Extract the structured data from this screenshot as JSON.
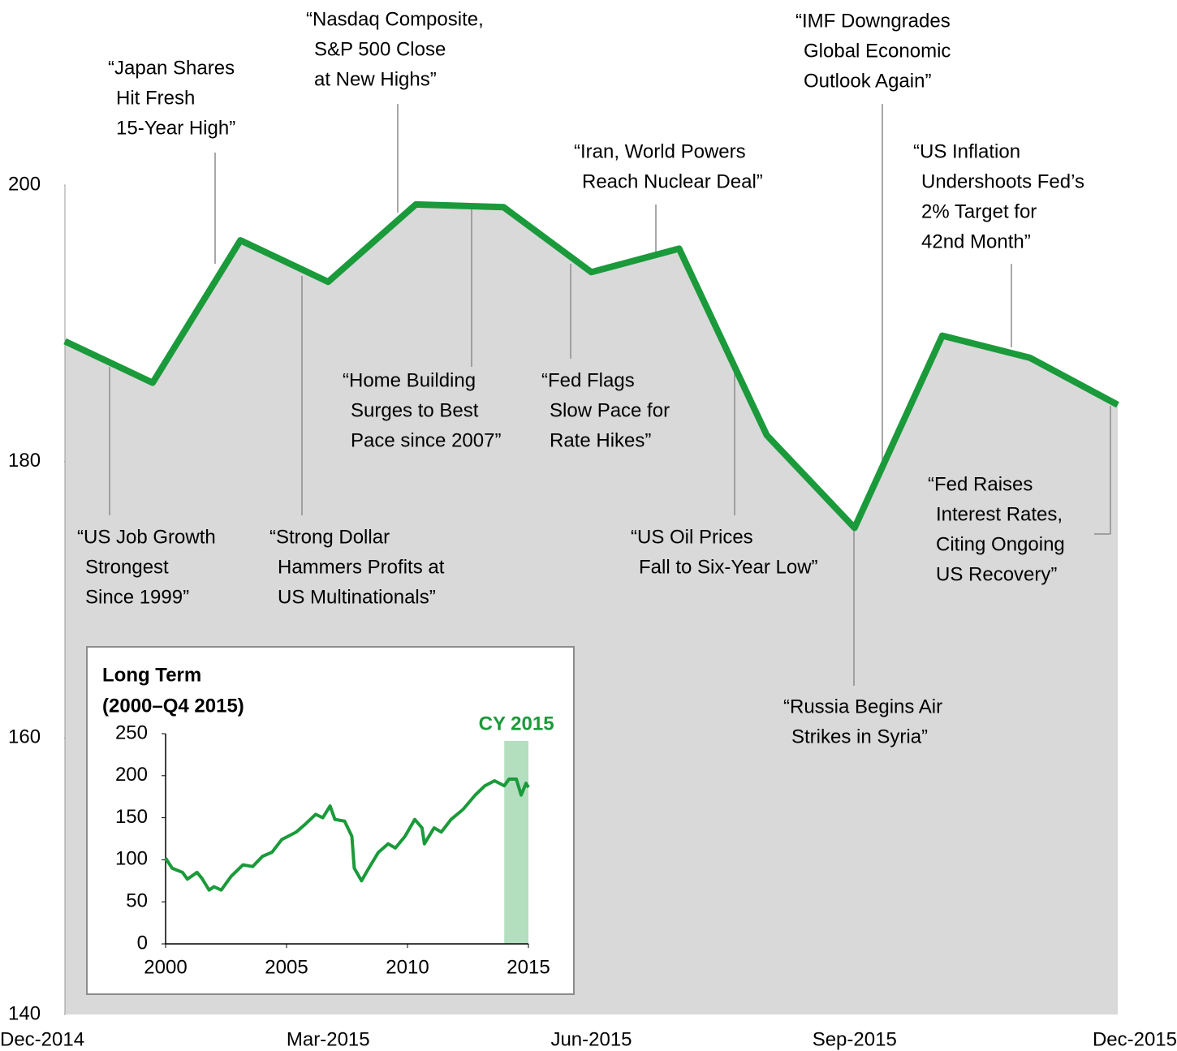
{
  "chart_data": [
    {
      "type": "area-line",
      "categories": [
        "Dec-2014",
        null,
        null,
        "Mar-2015",
        null,
        null,
        "Jun-2015",
        null,
        null,
        "Sep-2015",
        null,
        null,
        "Dec-2015"
      ],
      "series": [
        {
          "color": "#1a9a3a",
          "values": [
            188.7,
            185.7,
            196.0,
            193.0,
            198.6,
            198.4,
            193.7,
            195.4,
            181.9,
            175.2,
            189.1,
            187.5,
            184.1
          ]
        }
      ],
      "area_color": "#d9d9d9",
      "ylim": [
        140,
        200
      ],
      "yticks": [
        140,
        160,
        180,
        200
      ],
      "annotations": [
        [
          "“Japan Shares",
          "Hit Fresh",
          "15-Year High”"
        ],
        [
          "“Nasdaq Composite,",
          "S&P 500 Close",
          "at New Highs”"
        ],
        [
          "“Iran, World Powers",
          "Reach Nuclear Deal”"
        ],
        [
          "“IMF Downgrades",
          "Global Economic",
          "Outlook Again”"
        ],
        [
          "“US Inflation",
          "Undershoots Fed’s",
          "2% Target for",
          "42nd Month”"
        ],
        [
          "“US Job Growth",
          "Strongest",
          "Since 1999”"
        ],
        [
          "“Strong Dollar",
          "Hammers Profits at",
          "US Multinationals”"
        ],
        [
          "“Home Building",
          "Surges to Best",
          "Pace since 2007”"
        ],
        [
          "“Fed Flags",
          "Slow Pace for",
          "Rate Hikes”"
        ],
        [
          "“US Oil Prices",
          "Fall to Six-Year Low”"
        ],
        [
          "“Russia Begins Air",
          "Strikes in Syria”"
        ],
        [
          "“Fed Raises",
          "Interest Rates,",
          "Citing Ongoing",
          "US Recovery”"
        ]
      ]
    },
    {
      "type": "line",
      "title": "Long Term",
      "subtitle": "(2000–Q4 2015)",
      "x": [
        2000,
        2000.27,
        2000.7,
        2000.9,
        2001.3,
        2001.5,
        2001.8,
        2002.0,
        2002.3,
        2002.7,
        2003.2,
        2003.6,
        2004.0,
        2004.4,
        2004.8,
        2005.4,
        2005.8,
        2006.2,
        2006.5,
        2006.8,
        2007.0,
        2007.4,
        2007.7,
        2007.8,
        2008.1,
        2008.4,
        2008.8,
        2009.2,
        2009.5,
        2009.9,
        2010.3,
        2010.6,
        2010.7,
        2011.1,
        2011.4,
        2011.8,
        2012.3,
        2012.8,
        2013.2,
        2013.6,
        2014.0,
        2014.2,
        2014.5,
        2014.7,
        2014.9,
        2015.0
      ],
      "series": [
        {
          "color": "#1a9a3a",
          "values": [
            102,
            90,
            85,
            77,
            85,
            78,
            64,
            68,
            64,
            80,
            94,
            92,
            104,
            109,
            124,
            133,
            143,
            154,
            150,
            164,
            148,
            146,
            128,
            90,
            75,
            90,
            109,
            119,
            114,
            128,
            148,
            138,
            119,
            138,
            133,
            148,
            160,
            177,
            188,
            194,
            188,
            196,
            196,
            177,
            191,
            186
          ]
        }
      ],
      "highlight": {
        "label": "CY 2015",
        "xlim": [
          2014,
          2015
        ],
        "color": "#b3dfbf",
        "label_color": "#1a9a3a"
      },
      "xlim": [
        2000,
        2015
      ],
      "xticks": [
        2000,
        2005,
        2010,
        2015
      ],
      "ylim": [
        0,
        250
      ],
      "yticks": [
        0,
        50,
        100,
        150,
        200,
        250
      ]
    }
  ]
}
